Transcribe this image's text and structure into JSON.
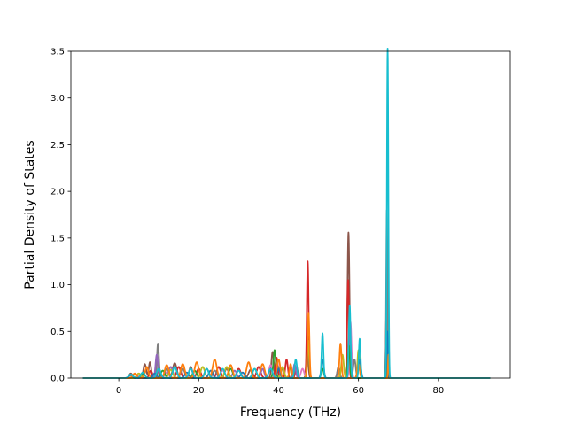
{
  "chart_data": {
    "type": "line",
    "title": "",
    "xlabel": "Frequency (THz)",
    "ylabel": "Partial Density of States",
    "xlim": [
      -12,
      98
    ],
    "ylim": [
      0,
      3.5
    ],
    "xticks": [
      0,
      20,
      40,
      60,
      80
    ],
    "yticks": [
      0.0,
      0.5,
      1.0,
      1.5,
      2.0,
      2.5,
      3.0,
      3.5
    ],
    "xtick_labels": [
      "0",
      "20",
      "40",
      "60",
      "80"
    ],
    "ytick_labels": [
      "0.0",
      "0.5",
      "1.0",
      "1.5",
      "2.0",
      "2.5",
      "3.0",
      "3.5"
    ],
    "grid": false,
    "legend": false,
    "x_range": [
      -9,
      93
    ],
    "series": [
      {
        "color": "#8c564b",
        "peaks": [
          [
            3,
            0.05,
            0.4
          ],
          [
            6.5,
            0.15,
            0.35
          ],
          [
            7.8,
            0.17,
            0.3
          ],
          [
            10,
            0.12,
            0.3
          ],
          [
            14,
            0.16,
            0.5
          ],
          [
            18,
            0.12,
            0.4
          ],
          [
            22,
            0.1,
            0.5
          ],
          [
            27,
            0.1,
            0.5
          ],
          [
            33,
            0.09,
            0.5
          ],
          [
            38.5,
            0.28,
            0.3
          ],
          [
            41,
            0.1,
            0.4
          ],
          [
            47.2,
            0.3,
            0.25
          ],
          [
            55,
            0.12,
            0.3
          ],
          [
            57.5,
            1.56,
            0.25
          ],
          [
            67,
            0.7,
            0.15
          ]
        ]
      },
      {
        "color": "#d62728",
        "peaks": [
          [
            4,
            0.04,
            0.5
          ],
          [
            8,
            0.08,
            0.4
          ],
          [
            15,
            0.12,
            0.5
          ],
          [
            20,
            0.1,
            0.5
          ],
          [
            25,
            0.12,
            0.5
          ],
          [
            30,
            0.1,
            0.5
          ],
          [
            35,
            0.12,
            0.5
          ],
          [
            39.5,
            0.22,
            0.3
          ],
          [
            42,
            0.2,
            0.3
          ],
          [
            44.5,
            0.12,
            0.3
          ],
          [
            47.3,
            1.25,
            0.22
          ],
          [
            57.4,
            1.05,
            0.22
          ],
          [
            67.2,
            1.2,
            0.15
          ]
        ]
      },
      {
        "color": "#e377c2",
        "peaks": [
          [
            5,
            0.03,
            0.5
          ],
          [
            12,
            0.06,
            0.5
          ],
          [
            26,
            0.08,
            0.6
          ],
          [
            38,
            0.14,
            0.4
          ],
          [
            46,
            0.1,
            0.4
          ],
          [
            58,
            0.6,
            0.25
          ]
        ]
      },
      {
        "color": "#7f7f7f",
        "peaks": [
          [
            9.8,
            0.37,
            0.25
          ],
          [
            12,
            0.1,
            0.5
          ],
          [
            16,
            0.1,
            0.5
          ],
          [
            24,
            0.08,
            0.5
          ],
          [
            40,
            0.12,
            0.4
          ],
          [
            55,
            0.1,
            0.3
          ],
          [
            59,
            0.2,
            0.3
          ],
          [
            67.1,
            1.8,
            0.15
          ]
        ]
      },
      {
        "color": "#9467bd",
        "peaks": [
          [
            9.5,
            0.25,
            0.3
          ],
          [
            13,
            0.12,
            0.5
          ],
          [
            18,
            0.1,
            0.5
          ],
          [
            29,
            0.08,
            0.5
          ],
          [
            36,
            0.1,
            0.4
          ],
          [
            44,
            0.15,
            0.3
          ],
          [
            57.8,
            0.5,
            0.25
          ]
        ]
      },
      {
        "color": "#2ca02c",
        "peaks": [
          [
            6,
            0.05,
            0.5
          ],
          [
            11,
            0.08,
            0.5
          ],
          [
            19,
            0.08,
            0.5
          ],
          [
            28,
            0.1,
            0.5
          ],
          [
            39,
            0.3,
            0.3
          ],
          [
            43,
            0.12,
            0.3
          ],
          [
            51,
            0.1,
            0.3
          ],
          [
            57.6,
            0.35,
            0.25
          ],
          [
            67.4,
            0.25,
            0.15
          ]
        ]
      },
      {
        "color": "#bcbd22",
        "peaks": [
          [
            5,
            0.05,
            0.5
          ],
          [
            13,
            0.09,
            0.5
          ],
          [
            21,
            0.12,
            0.5
          ],
          [
            27,
            0.12,
            0.5
          ],
          [
            34,
            0.1,
            0.5
          ],
          [
            41,
            0.12,
            0.4
          ],
          [
            47.4,
            0.4,
            0.25
          ],
          [
            56,
            0.25,
            0.3
          ],
          [
            60,
            0.3,
            0.25
          ]
        ]
      },
      {
        "color": "#1f77b4",
        "peaks": [
          [
            3,
            0.03,
            0.5
          ],
          [
            9,
            0.05,
            0.5
          ],
          [
            17,
            0.06,
            0.5
          ],
          [
            23,
            0.08,
            0.5
          ],
          [
            31,
            0.06,
            0.5
          ],
          [
            40,
            0.1,
            0.4
          ],
          [
            51,
            0.2,
            0.3
          ],
          [
            60.3,
            0.2,
            0.3
          ],
          [
            67.2,
            0.5,
            0.15
          ]
        ]
      },
      {
        "color": "#ff7f0e",
        "peaks": [
          [
            4,
            0.05,
            0.5
          ],
          [
            7,
            0.12,
            0.4
          ],
          [
            12,
            0.14,
            0.5
          ],
          [
            16,
            0.15,
            0.5
          ],
          [
            19.5,
            0.17,
            0.5
          ],
          [
            24,
            0.2,
            0.5
          ],
          [
            28,
            0.14,
            0.5
          ],
          [
            32.5,
            0.17,
            0.5
          ],
          [
            36,
            0.15,
            0.5
          ],
          [
            40,
            0.2,
            0.4
          ],
          [
            43,
            0.15,
            0.3
          ],
          [
            47.5,
            0.7,
            0.22
          ],
          [
            55.5,
            0.37,
            0.25
          ],
          [
            60,
            0.15,
            0.3
          ],
          [
            67.5,
            0.25,
            0.12
          ]
        ]
      },
      {
        "color": "#17becf",
        "peaks": [
          [
            3,
            0.04,
            0.5
          ],
          [
            6,
            0.06,
            0.5
          ],
          [
            10,
            0.1,
            0.5
          ],
          [
            14,
            0.12,
            0.5
          ],
          [
            18,
            0.1,
            0.5
          ],
          [
            22,
            0.1,
            0.5
          ],
          [
            26,
            0.1,
            0.5
          ],
          [
            30,
            0.08,
            0.5
          ],
          [
            34,
            0.1,
            0.5
          ],
          [
            38,
            0.1,
            0.5
          ],
          [
            44.3,
            0.2,
            0.3
          ],
          [
            51,
            0.48,
            0.22
          ],
          [
            57.8,
            0.78,
            0.22
          ],
          [
            60.3,
            0.42,
            0.22
          ],
          [
            67.3,
            3.53,
            0.18
          ]
        ]
      }
    ]
  }
}
